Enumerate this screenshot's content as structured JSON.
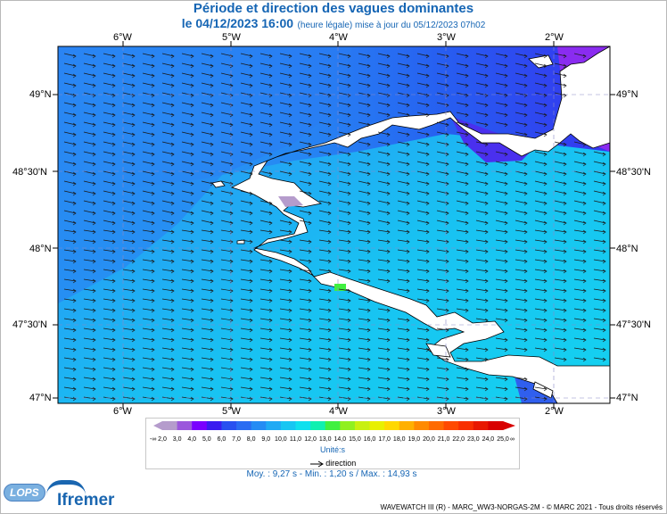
{
  "header": {
    "title": "Période et direction des vagues dominantes",
    "date": "le 04/12/2023 16:00",
    "update_note": "(heure légale) mise à jour du 05/12/2023 07h02"
  },
  "map": {
    "lon_ticks": [
      "6°W",
      "5°W",
      "4°W",
      "3°W",
      "2°W"
    ],
    "lat_ticks": [
      "49°N",
      "48°30'N",
      "48°N",
      "47°30'N",
      "47°N"
    ],
    "colors": {
      "land": "#ffffff",
      "coast": "#000000",
      "grid": "#8a8ac8",
      "arrow": "#1a1a1a"
    }
  },
  "legend": {
    "ticks": [
      "2,0",
      "3,0",
      "4,0",
      "5,0",
      "6,0",
      "7,0",
      "8,0",
      "9,0",
      "10,0",
      "11,0",
      "12,0",
      "13,0",
      "14,0",
      "15,0",
      "16,0",
      "17,0",
      "18,0",
      "19,0",
      "20,0",
      "21,0",
      "22,0",
      "23,0",
      "24,0",
      "25,0"
    ],
    "low_symbol": "-∞",
    "high_symbol": "∞",
    "colors": [
      "#b59ccc",
      "#9b57dc",
      "#7a00ff",
      "#3a1cf0",
      "#2850f0",
      "#2a6cf2",
      "#258cf4",
      "#20aaf4",
      "#18c6f2",
      "#10e0ee",
      "#10f0b0",
      "#40f040",
      "#90f020",
      "#c8f010",
      "#e8f000",
      "#ffd800",
      "#ffb000",
      "#ff8a00",
      "#ff6a00",
      "#ff4a00",
      "#f83000",
      "#e81800",
      "#d80000"
    ],
    "units": "Unité:s",
    "direction_label": "direction"
  },
  "stats": "Moy. : 9,27 s  -  Min. : 1,20 s / Max. : 14,93 s",
  "credit": "WAVEWATCH III (R) - MARC_WW3-NORGAS-2M - © MARC 2021 - Tous droits réservés",
  "logos": {
    "lops": "LOPS",
    "ifremer": "Ifremer"
  }
}
